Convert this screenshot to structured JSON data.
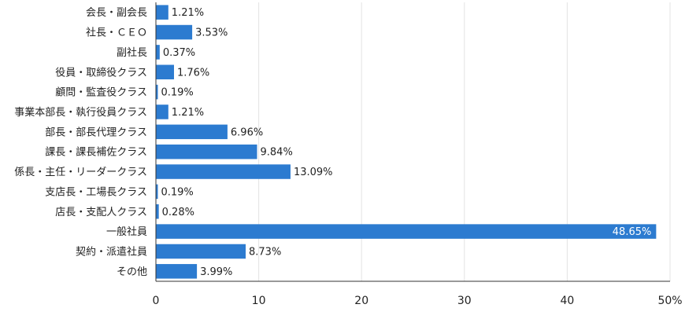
{
  "chart_data": {
    "type": "bar",
    "orientation": "horizontal",
    "title": "",
    "xlabel": "",
    "ylabel": "",
    "xlim": [
      0,
      50
    ],
    "x_ticks": [
      0,
      10,
      20,
      30,
      40,
      50
    ],
    "x_tick_labels": [
      "0",
      "10",
      "20",
      "30",
      "40",
      "50%"
    ],
    "grid": true,
    "categories": [
      "会長・副会長",
      "社長・ＣＥＯ",
      "副社長",
      "役員・取締役クラス",
      "顧問・監査役クラス",
      "事業本部長・執行役員クラス",
      "部長・部長代理クラス",
      "課長・課長補佐クラス",
      "係長・主任・リーダークラス",
      "支店長・工場長クラス",
      "店長・支配人クラス",
      "一般社員",
      "契約・派遣社員",
      "その他"
    ],
    "values": [
      1.21,
      3.53,
      0.37,
      1.76,
      0.19,
      1.21,
      6.96,
      9.84,
      13.09,
      0.19,
      0.28,
      48.65,
      8.73,
      3.99
    ],
    "value_labels": [
      "1.21%",
      "3.53%",
      "0.37%",
      "1.76%",
      "0.19%",
      "1.21%",
      "6.96%",
      "9.84%",
      "13.09%",
      "0.19%",
      "0.28%",
      "48.65%",
      "8.73%",
      "3.99%"
    ],
    "bar_color": "#2c7bd0",
    "grid_color": "#e3e3e3"
  }
}
